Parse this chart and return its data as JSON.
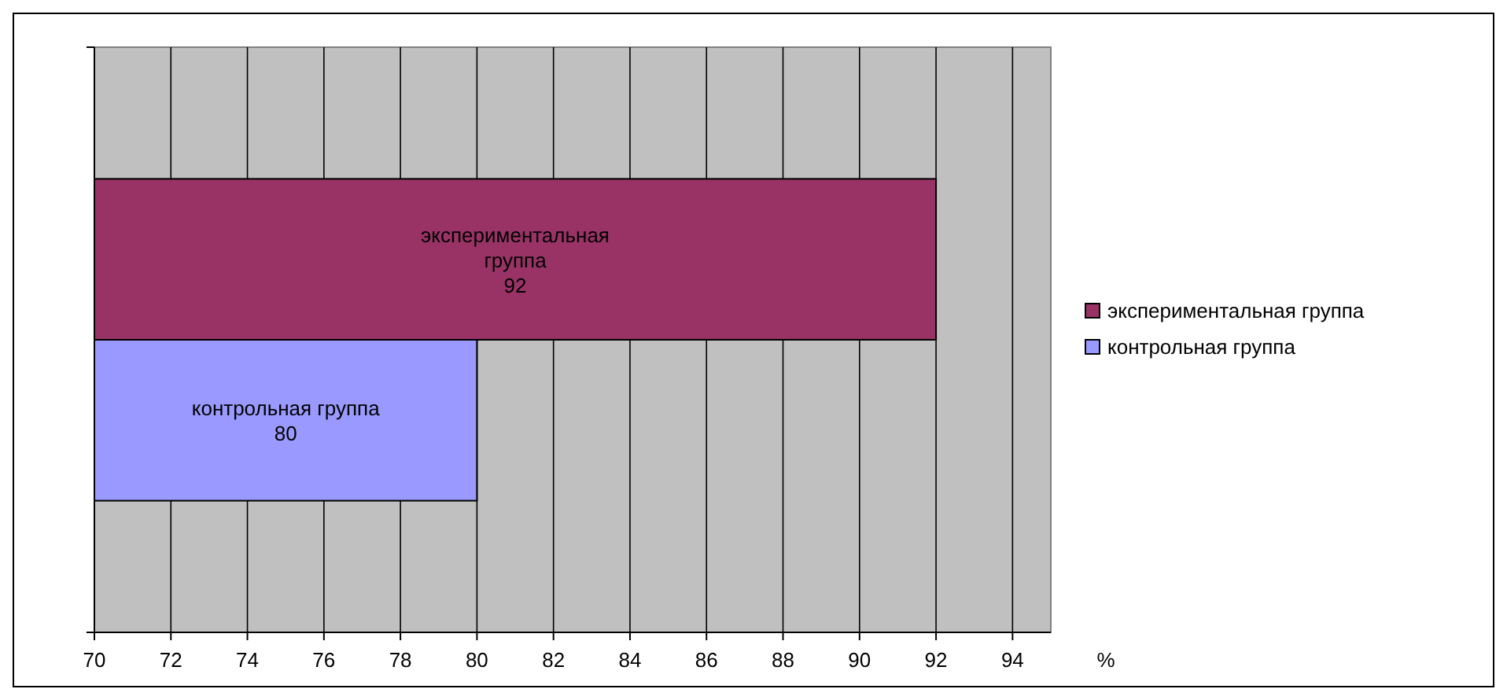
{
  "chart_data": {
    "type": "bar",
    "orientation": "horizontal",
    "categories": [
      null
    ],
    "xlabel": "%",
    "series": [
      {
        "name": "экспериментальная группа",
        "color": "#993366",
        "values": [
          92
        ]
      },
      {
        "name": "контрольная группа",
        "color": "#9999ff",
        "values": [
          80
        ]
      }
    ],
    "xlim": [
      70,
      95
    ],
    "xticks": [
      70,
      72,
      74,
      76,
      78,
      80,
      82,
      84,
      86,
      88,
      90,
      92,
      94
    ],
    "grid": "x",
    "legend": "right",
    "data_labels": true
  }
}
